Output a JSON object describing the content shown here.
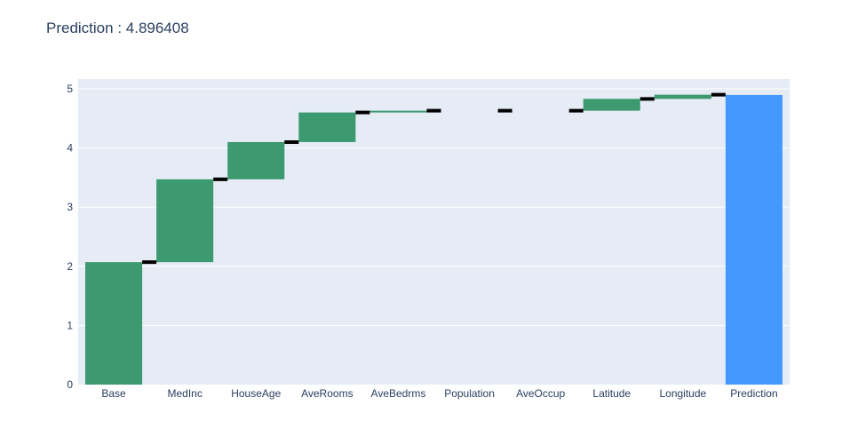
{
  "chart_data": {
    "type": "waterfall",
    "title": "Prediction : 4.896408",
    "xlabel": "",
    "ylabel": "",
    "categories": [
      "Base",
      "MedInc",
      "HouseAge",
      "AveRooms",
      "AveBedrms",
      "Population",
      "AveOccup",
      "Latitude",
      "Longitude",
      "Prediction"
    ],
    "bars": [
      {
        "category": "Base",
        "from": 0,
        "to": 2.07,
        "kind": "increase"
      },
      {
        "category": "MedInc",
        "from": 2.07,
        "to": 3.47,
        "kind": "increase"
      },
      {
        "category": "HouseAge",
        "from": 3.47,
        "to": 4.1,
        "kind": "increase"
      },
      {
        "category": "AveRooms",
        "from": 4.1,
        "to": 4.6,
        "kind": "increase"
      },
      {
        "category": "AveBedrms",
        "from": 4.6,
        "to": 4.63,
        "kind": "increase"
      },
      {
        "category": "Population",
        "from": 4.63,
        "to": 4.63,
        "kind": "increase"
      },
      {
        "category": "AveOccup",
        "from": 4.63,
        "to": 4.63,
        "kind": "increase"
      },
      {
        "category": "Latitude",
        "from": 4.63,
        "to": 4.83,
        "kind": "increase"
      },
      {
        "category": "Longitude",
        "from": 4.83,
        "to": 4.9,
        "kind": "increase"
      },
      {
        "category": "Prediction",
        "from": 0,
        "to": 4.896408,
        "kind": "total"
      }
    ],
    "yticks": [
      0,
      1,
      2,
      3,
      4,
      5
    ],
    "ylim": [
      0,
      5.05
    ],
    "grid": true,
    "colors": {
      "increase": "#3d9970",
      "total": "#4499ff",
      "connector": "#000000",
      "plot_bg": "#e5ecf6",
      "grid": "#ffffff",
      "text": "#2a3f5f"
    }
  }
}
